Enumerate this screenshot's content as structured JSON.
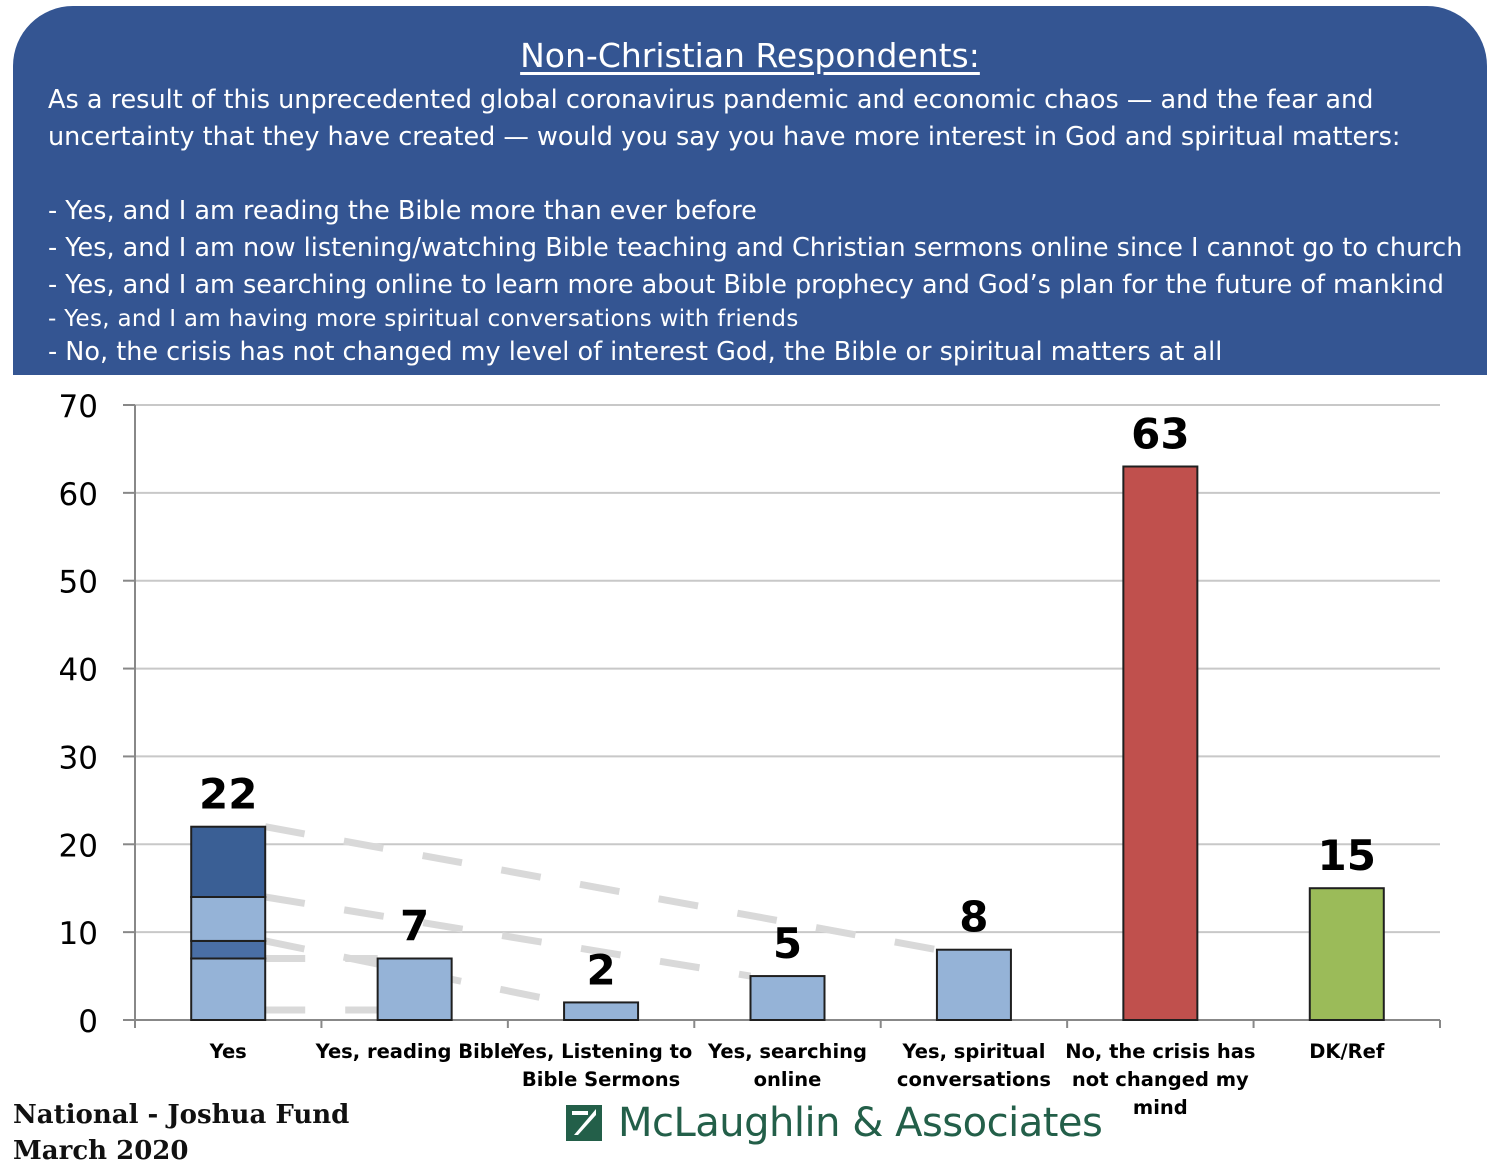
{
  "header": {
    "title": "Non-Christian Respondents:",
    "question": "As a result of this unprecedented global coronavirus pandemic and economic chaos — and the fear and uncertainty that they have created — would you say you have more interest in God and spiritual matters:",
    "options": [
      "- Yes, and I am reading the Bible more than ever before",
      "- Yes, and I am now listening/watching Bible teaching and Christian sermons online since I cannot go to church",
      "- Yes, and I am searching online to learn more about Bible prophecy and God’s plan for the future of mankind",
      "- Yes, and I am having more spiritual conversations with friends",
      "- No, the crisis has not changed my level of interest God, the Bible or spiritual matters at all"
    ]
  },
  "chart_data": {
    "type": "bar",
    "categories": [
      "Yes",
      "Yes, reading Bible",
      "Yes, Listening to Bible Sermons",
      "Yes, searching online",
      "Yes, spiritual conversations",
      "No, the crisis has not changed my mind",
      "DK/Ref"
    ],
    "category_lines": [
      [
        "Yes"
      ],
      [
        "Yes, reading Bible"
      ],
      [
        "Yes, Listening to",
        "Bible Sermons"
      ],
      [
        "Yes, searching",
        "online"
      ],
      [
        "Yes, spiritual",
        "conversations"
      ],
      [
        "No, the crisis has",
        "not changed my",
        "mind"
      ],
      [
        "DK/Ref"
      ]
    ],
    "values": [
      22,
      7,
      2,
      5,
      8,
      63,
      15
    ],
    "data_labels": [
      "22",
      "7",
      "2",
      "5",
      "8",
      "63",
      "15"
    ],
    "yes_breakdown": [
      7,
      2,
      5,
      8
    ],
    "ylim": [
      0,
      70
    ],
    "yticks": [
      0,
      10,
      20,
      30,
      40,
      50,
      60,
      70
    ],
    "grid": true,
    "colors": {
      "yes_segments": [
        "#95b3d7",
        "#4a6fa5",
        "#95b3d7",
        "#3a5f95"
      ],
      "yes_breakdown_bars": "#95b3d7",
      "no": "#c0504d",
      "dk": "#9bbb59",
      "connector": "#d9d9d9"
    }
  },
  "footer": {
    "line1": "National - Joshua Fund",
    "line2": "March 2020",
    "logo_text": "McLaughlin & Associates"
  },
  "colors": {
    "header_bg": "#345592",
    "header_text": "#ffffff",
    "logo_green": "#235f49"
  }
}
